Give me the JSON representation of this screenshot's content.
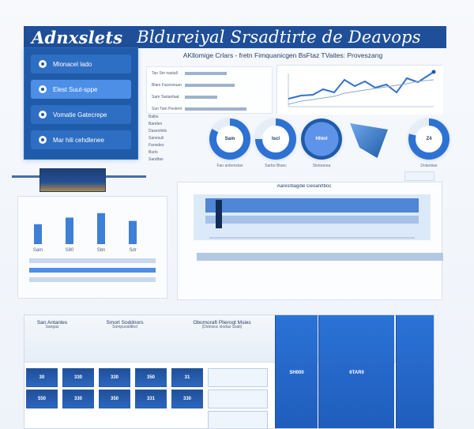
{
  "header": {
    "brand": "Adnxslets",
    "title": "Bldureiyal Srsadtirte de Deavops"
  },
  "sidebar": {
    "items": [
      {
        "label": "Mlonacel lado"
      },
      {
        "label": "Elest Suut-sppe"
      },
      {
        "label": "Vomatie Gatecrepe"
      },
      {
        "label": "Mar hili cehdlenee"
      }
    ]
  },
  "subtitle": "AKllomige Crlars - fretn Fimquanicgen BsFtaz TVaites: Proveszang",
  "metrics": [
    {
      "label": "Tan Sm nastall",
      "value": 56
    },
    {
      "label": "Blam Faceonuant",
      "value": 66
    },
    {
      "label": "Sam Tastanfaat",
      "value": 43
    },
    {
      "label": "Sun Tam Peolent",
      "value": 82
    }
  ],
  "side_labels": [
    "Balbs",
    "Barelen",
    "Daseolnlis",
    "Sanesuli",
    "Fanndes",
    "Burlo",
    "Sandfan"
  ],
  "gauges": [
    {
      "value": "Sam",
      "caption": "Fan anbonslan"
    },
    {
      "value": "Iscl",
      "caption": "Sarbo Btanc"
    },
    {
      "value": "Hhinl",
      "caption": "Slotoanea"
    },
    {
      "value": "Z4",
      "caption": "Dolantian"
    }
  ],
  "center_title": "Aaresrbagdie Geoanrtboc",
  "left_chart": {
    "groups": [
      {
        "label": "Sam",
        "value": 18
      },
      {
        "label": "S80",
        "value": 24
      },
      {
        "label": "Sbn",
        "value": 28
      },
      {
        "label": "Sdr",
        "value": 21
      }
    ]
  },
  "table": {
    "headers": [
      {
        "title": "San Antanles",
        "sub": "Sangas"
      },
      {
        "title": "Smort Soddnors",
        "sub": "Sompuoalitled"
      },
      {
        "title": "Obomoraft Plieroqt Msies",
        "sub": "(Dstnisoc slodas Ssalt)"
      }
    ],
    "grid_values": [
      "30",
      "330",
      "330",
      "350",
      "31",
      "550",
      "330",
      "350",
      "331",
      "330"
    ],
    "blue_values": [
      "SH000",
      "6TAR0"
    ]
  }
}
